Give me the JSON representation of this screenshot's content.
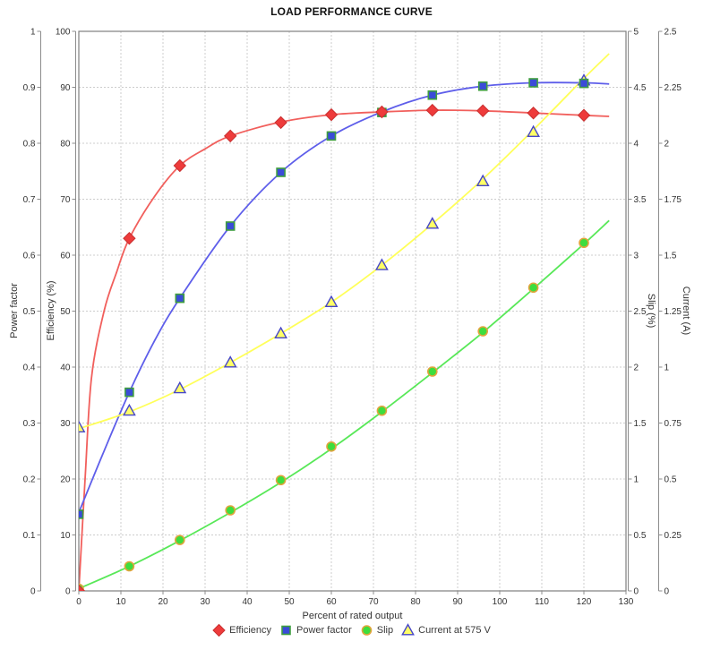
{
  "title": "LOAD PERFORMANCE CURVE",
  "chart_data": {
    "type": "line",
    "title": "LOAD PERFORMANCE CURVE",
    "xlabel": "Percent of rated output",
    "xlim": [
      0,
      130
    ],
    "x_ticks": [
      "0",
      "10",
      "20",
      "30",
      "40",
      "50",
      "60",
      "70",
      "80",
      "90",
      "100",
      "110",
      "120",
      "130"
    ],
    "grid": true,
    "legend_position": "bottom",
    "x": [
      0,
      12,
      24,
      36,
      48,
      60,
      72,
      84,
      96,
      108,
      120
    ],
    "axes": {
      "power_factor": {
        "label": "Power factor",
        "side": "left",
        "range": [
          0,
          1
        ],
        "ticks": [
          "0",
          "0.1",
          "0.2",
          "0.3",
          "0.4",
          "0.5",
          "0.6",
          "0.7",
          "0.8",
          "0.9",
          "1"
        ]
      },
      "efficiency": {
        "label": "Efficiency (%)",
        "side": "left",
        "range": [
          0,
          100
        ],
        "ticks": [
          "0",
          "10",
          "20",
          "30",
          "40",
          "50",
          "60",
          "70",
          "80",
          "90",
          "100"
        ]
      },
      "slip": {
        "label": "Slip (%)",
        "side": "right",
        "range": [
          0,
          5
        ],
        "ticks": [
          "0",
          "0.5",
          "1",
          "1.5",
          "2",
          "2.5",
          "3",
          "3.5",
          "4",
          "4.5",
          "5"
        ]
      },
      "current": {
        "label": "Current (A)",
        "side": "right",
        "range": [
          0,
          2.5
        ],
        "ticks": [
          "0",
          "0.25",
          "0.5",
          "0.75",
          "1",
          "1.25",
          "1.5",
          "1.75",
          "2",
          "2.25",
          "2.5"
        ]
      }
    },
    "series": [
      {
        "name": "Efficiency",
        "axis": "efficiency",
        "marker": "diamond",
        "marker_fill": "#ee3b3b",
        "marker_stroke": "#c93030",
        "line_color": "#f15f5c",
        "values": [
          0,
          63,
          76,
          81.3,
          83.7,
          85.1,
          85.6,
          85.9,
          85.8,
          85.4,
          85.0
        ],
        "fit": [
          [
            0,
            0
          ],
          [
            1.5,
            20
          ],
          [
            3,
            38
          ],
          [
            6,
            50
          ],
          [
            9,
            57
          ],
          [
            12,
            63
          ],
          [
            18,
            70.5
          ],
          [
            24,
            76
          ],
          [
            30,
            79
          ],
          [
            36,
            81.3
          ],
          [
            48,
            83.8
          ],
          [
            60,
            85.1
          ],
          [
            72,
            85.6
          ],
          [
            84,
            85.9
          ],
          [
            96,
            85.8
          ],
          [
            108,
            85.4
          ],
          [
            120,
            85.0
          ],
          [
            126,
            84.8
          ]
        ]
      },
      {
        "name": "Power factor",
        "axis": "power_factor",
        "marker": "square",
        "marker_fill": "#3a4bd8",
        "marker_stroke": "#3f9e3f",
        "line_color": "#5e5eea",
        "values": [
          0.137,
          0.355,
          0.523,
          0.652,
          0.748,
          0.813,
          0.855,
          0.886,
          0.902,
          0.908,
          0.907
        ],
        "fit": [
          [
            0,
            0.14
          ],
          [
            6,
            0.25
          ],
          [
            12,
            0.355
          ],
          [
            18,
            0.447
          ],
          [
            24,
            0.523
          ],
          [
            36,
            0.652
          ],
          [
            48,
            0.748
          ],
          [
            60,
            0.813
          ],
          [
            72,
            0.856
          ],
          [
            84,
            0.886
          ],
          [
            96,
            0.902
          ],
          [
            108,
            0.908
          ],
          [
            120,
            0.908
          ],
          [
            126,
            0.906
          ]
        ]
      },
      {
        "name": "Slip",
        "axis": "slip",
        "marker": "circle",
        "marker_fill": "#3ddd3d",
        "marker_stroke": "#e2a43c",
        "line_color": "#58e858",
        "values": [
          0.02,
          0.22,
          0.455,
          0.72,
          0.99,
          1.29,
          1.61,
          1.96,
          2.32,
          2.71,
          3.11
        ],
        "fit": [
          [
            0,
            0.02
          ],
          [
            12,
            0.22
          ],
          [
            24,
            0.45
          ],
          [
            36,
            0.7
          ],
          [
            48,
            0.97
          ],
          [
            60,
            1.27
          ],
          [
            72,
            1.6
          ],
          [
            84,
            1.95
          ],
          [
            96,
            2.31
          ],
          [
            108,
            2.7
          ],
          [
            120,
            3.1
          ],
          [
            126,
            3.31
          ]
        ]
      },
      {
        "name": "Current at 575 V",
        "axis": "current",
        "marker": "triangle",
        "marker_fill": "#ffff66",
        "marker_stroke": "#4646c8",
        "line_color": "#ffff59",
        "values": [
          0.73,
          0.805,
          0.905,
          1.02,
          1.15,
          1.29,
          1.455,
          1.64,
          1.83,
          2.05,
          2.28
        ],
        "fit": [
          [
            0,
            0.725
          ],
          [
            12,
            0.8
          ],
          [
            24,
            0.9
          ],
          [
            36,
            1.02
          ],
          [
            48,
            1.15
          ],
          [
            60,
            1.29
          ],
          [
            72,
            1.455
          ],
          [
            84,
            1.64
          ],
          [
            96,
            1.84
          ],
          [
            108,
            2.06
          ],
          [
            120,
            2.29
          ],
          [
            126,
            2.4
          ]
        ]
      }
    ],
    "style": {
      "grid_color": "#cccccc",
      "border_color": "#7f7f7f",
      "axis_color": "#8c8c8c",
      "tick_text_color": "#333333"
    }
  }
}
